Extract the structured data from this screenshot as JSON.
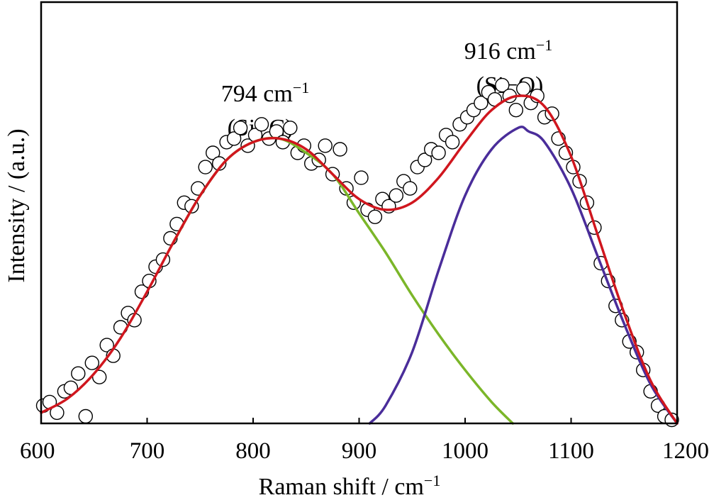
{
  "chart_data": {
    "type": "line",
    "title": "",
    "xlabel": "Raman shift / cm",
    "xlabel_sup": "−1",
    "ylabel": "Intensity / (a.u.)",
    "xlim": [
      600,
      1200
    ],
    "ylim": [
      0,
      1
    ],
    "x_ticks": [
      600,
      700,
      800,
      900,
      1000,
      1100,
      1200
    ],
    "y_ticks_shown": false,
    "grid": false,
    "legend": "none",
    "annotations": [
      {
        "line1": "794 cm",
        "line1_sup": "−1",
        "line2": "(Si−C)",
        "x": 837,
        "y": 1.14
      },
      {
        "line1": "916 cm",
        "line1_sup": "−1",
        "line2": "(Si−O)",
        "x": 1040,
        "y": 1.26
      }
    ],
    "series": [
      {
        "color": "#d0161e",
        "style": "line",
        "x": [
          600,
          625,
          650,
          675,
          700,
          725,
          750,
          775,
          800,
          825,
          850,
          875,
          900,
          925,
          950,
          975,
          1000,
          1025,
          1050,
          1075,
          1100,
          1125,
          1150,
          1175,
          1200
        ],
        "y": [
          0.03,
          0.07,
          0.14,
          0.24,
          0.37,
          0.51,
          0.64,
          0.74,
          0.79,
          0.8,
          0.77,
          0.7,
          0.63,
          0.6,
          0.62,
          0.69,
          0.79,
          0.88,
          0.92,
          0.89,
          0.75,
          0.53,
          0.31,
          0.12,
          0.0
        ]
      },
      {
        "color": "#7bb629",
        "style": "line",
        "x": [
          725,
          750,
          775,
          800,
          825,
          850,
          875,
          900,
          925,
          950,
          975,
          1000,
          1025,
          1045
        ],
        "y": [
          0.51,
          0.64,
          0.74,
          0.79,
          0.8,
          0.76,
          0.7,
          0.59,
          0.48,
          0.36,
          0.25,
          0.15,
          0.06,
          0.0
        ]
      },
      {
        "color": "#4a2d9a",
        "style": "line",
        "x": [
          910,
          925,
          950,
          975,
          1000,
          1025,
          1050,
          1060,
          1075,
          1100,
          1125,
          1150,
          1175,
          1200
        ],
        "y": [
          0.0,
          0.05,
          0.2,
          0.43,
          0.64,
          0.77,
          0.83,
          0.82,
          0.79,
          0.66,
          0.47,
          0.28,
          0.11,
          0.0
        ]
      },
      {
        "color": "#000000",
        "style": "markers",
        "x": [
          602,
          608,
          615,
          622,
          628,
          635,
          642,
          648,
          655,
          662,
          668,
          675,
          682,
          688,
          695,
          702,
          708,
          715,
          722,
          728,
          735,
          742,
          748,
          755,
          762,
          768,
          775,
          782,
          788,
          795,
          802,
          808,
          815,
          822,
          828,
          835,
          842,
          848,
          855,
          862,
          868,
          875,
          882,
          888,
          895,
          902,
          908,
          915,
          922,
          928,
          935,
          942,
          948,
          955,
          962,
          968,
          975,
          982,
          988,
          995,
          1002,
          1008,
          1015,
          1022,
          1028,
          1035,
          1042,
          1048,
          1055,
          1062,
          1068,
          1075,
          1082,
          1088,
          1095,
          1102,
          1108,
          1115,
          1122,
          1128,
          1135,
          1142,
          1148,
          1155,
          1162,
          1168,
          1175,
          1182,
          1188,
          1195
        ],
        "y": [
          0.05,
          0.06,
          0.03,
          0.09,
          0.1,
          0.14,
          0.02,
          0.17,
          0.13,
          0.22,
          0.19,
          0.27,
          0.31,
          0.29,
          0.37,
          0.4,
          0.44,
          0.46,
          0.52,
          0.56,
          0.62,
          0.61,
          0.66,
          0.72,
          0.76,
          0.73,
          0.79,
          0.8,
          0.83,
          0.78,
          0.81,
          0.84,
          0.8,
          0.82,
          0.79,
          0.83,
          0.76,
          0.78,
          0.73,
          0.74,
          0.78,
          0.7,
          0.77,
          0.66,
          0.62,
          0.69,
          0.6,
          0.58,
          0.63,
          0.61,
          0.64,
          0.68,
          0.66,
          0.72,
          0.74,
          0.77,
          0.76,
          0.81,
          0.79,
          0.84,
          0.86,
          0.88,
          0.9,
          0.93,
          0.91,
          0.95,
          0.92,
          0.88,
          0.94,
          0.9,
          0.92,
          0.86,
          0.87,
          0.8,
          0.76,
          0.72,
          0.68,
          0.62,
          0.55,
          0.45,
          0.4,
          0.33,
          0.29,
          0.23,
          0.2,
          0.15,
          0.09,
          0.05,
          0.02,
          0.01
        ]
      }
    ]
  }
}
